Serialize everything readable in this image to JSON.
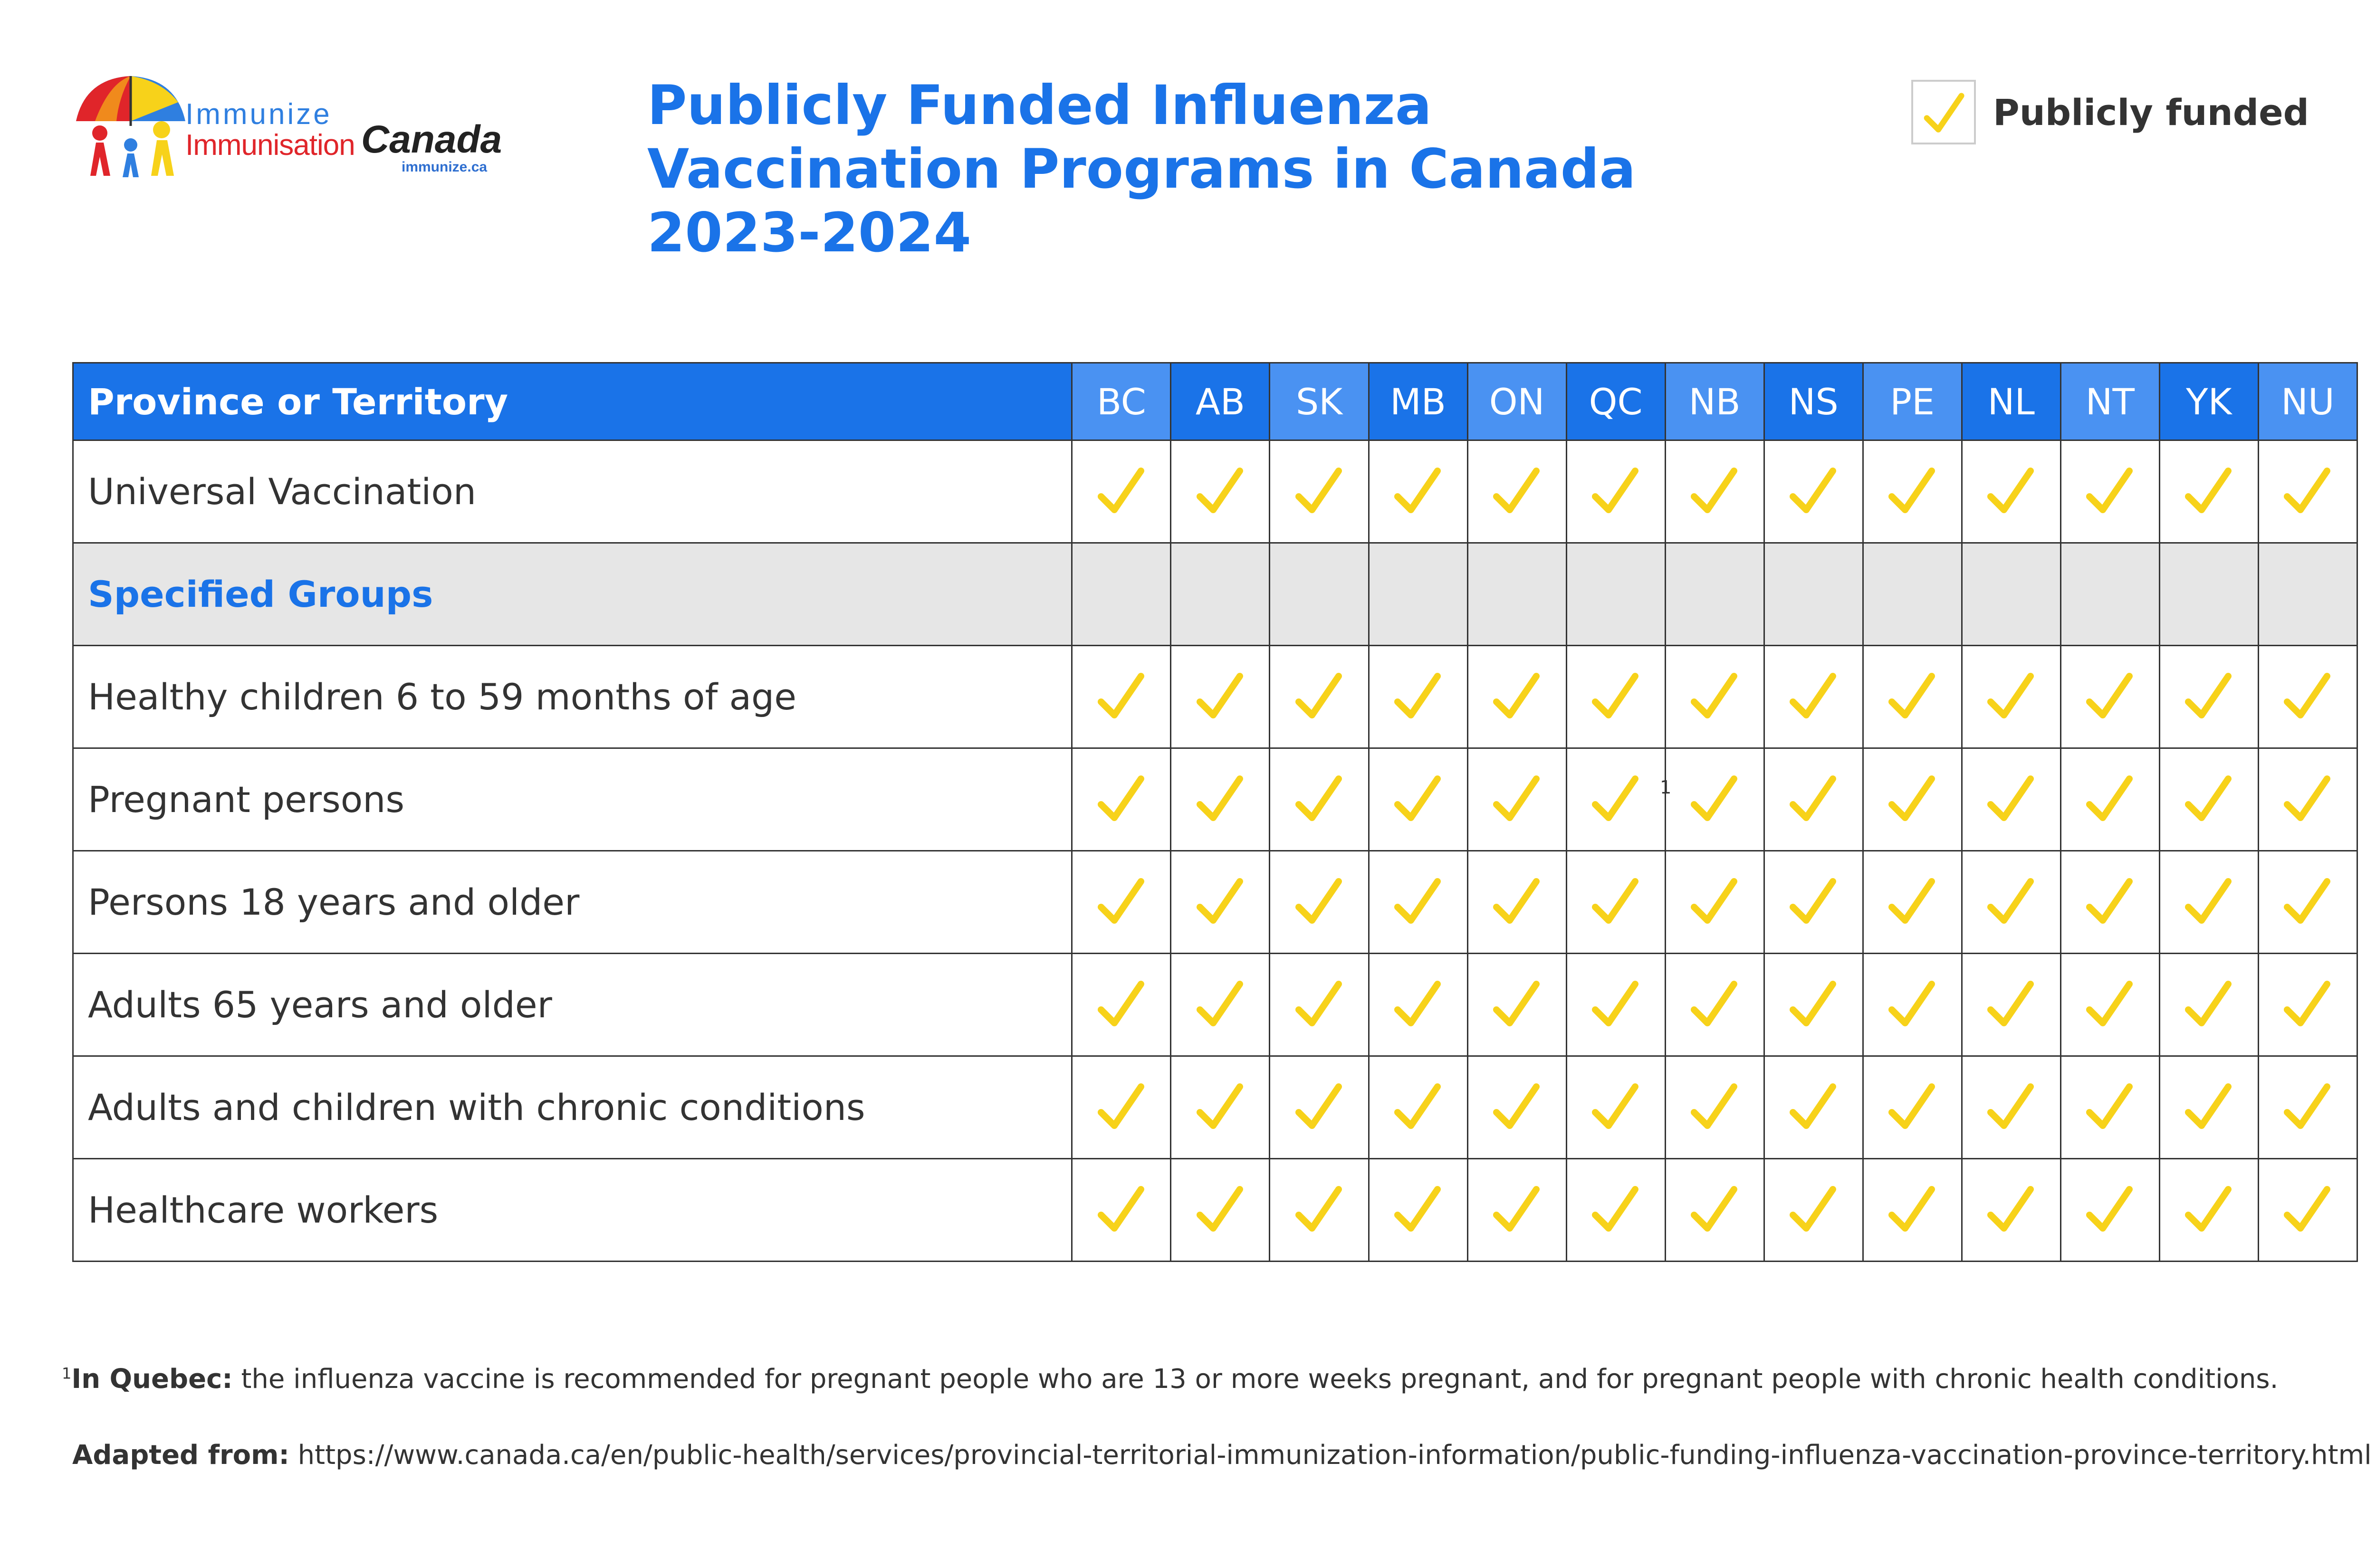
{
  "logo": {
    "line1": "Immunize",
    "line2": "Immunisation",
    "brand": "Canada",
    "url": "immunize.ca"
  },
  "title": "Publicly Funded Influenza Vaccination Programs in Canada 2023-2024",
  "legend": {
    "label": "Publicly funded",
    "check_icon": "checkmark-icon"
  },
  "colors": {
    "accent_blue": "#1a73e8",
    "header_alt_blue": "#4a92f2",
    "check_yellow": "#f7d21a",
    "group_row_gray": "#e6e6e6"
  },
  "table": {
    "header_label": "Province or Territory",
    "columns": [
      "BC",
      "AB",
      "SK",
      "MB",
      "ON",
      "QC",
      "NB",
      "NS",
      "PE",
      "NL",
      "NT",
      "YK",
      "NU"
    ],
    "rows": [
      {
        "label": "Universal Vaccination",
        "type": "data",
        "funded": [
          true,
          true,
          true,
          true,
          true,
          true,
          true,
          true,
          true,
          true,
          true,
          true,
          true
        ]
      },
      {
        "label": "Specified Groups",
        "type": "group"
      },
      {
        "label": "Healthy children 6 to 59 months of age",
        "type": "data",
        "funded": [
          true,
          true,
          true,
          true,
          true,
          true,
          true,
          true,
          true,
          true,
          true,
          true,
          true
        ]
      },
      {
        "label": "Pregnant persons",
        "type": "data",
        "funded": [
          true,
          true,
          true,
          true,
          true,
          true,
          true,
          true,
          true,
          true,
          true,
          true,
          true
        ],
        "note_col": 5,
        "note_mark": "1"
      },
      {
        "label": "Persons 18 years and older",
        "type": "data",
        "funded": [
          true,
          true,
          true,
          true,
          true,
          true,
          true,
          true,
          true,
          true,
          true,
          true,
          true
        ]
      },
      {
        "label": "Adults 65 years and older",
        "type": "data",
        "funded": [
          true,
          true,
          true,
          true,
          true,
          true,
          true,
          true,
          true,
          true,
          true,
          true,
          true
        ]
      },
      {
        "label": "Adults and children with chronic conditions",
        "type": "data",
        "funded": [
          true,
          true,
          true,
          true,
          true,
          true,
          true,
          true,
          true,
          true,
          true,
          true,
          true
        ]
      },
      {
        "label": "Healthcare workers",
        "type": "data",
        "funded": [
          true,
          true,
          true,
          true,
          true,
          true,
          true,
          true,
          true,
          true,
          true,
          true,
          true
        ]
      }
    ]
  },
  "footnote": {
    "mark": "1",
    "bold": "In Quebec:",
    "text": " the influenza vaccine is recommended for pregnant people who are 13 or more weeks pregnant, and for pregnant people with chronic health conditions."
  },
  "source": {
    "bold": "Adapted from:",
    "text": " https://www.canada.ca/en/public-health/services/provincial-territorial-immunization-information/public-funding-influenza-vaccination-province-territory.html"
  }
}
